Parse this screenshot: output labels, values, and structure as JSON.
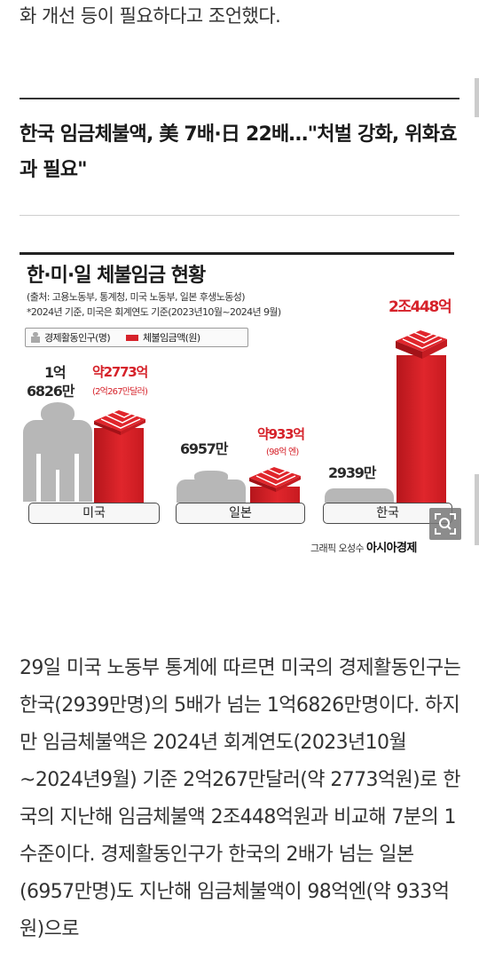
{
  "article": {
    "lead_tail": "화 개선 등이 필요하다고 조언했다.",
    "subheading": "한국 임금체불액, 美 7배·日 22배…\"처벌 강화, 위화효과 필요\"",
    "body_paragraph": "29일 미국 노동부 통계에 따르면 미국의 경제활동인구는 한국(2939만명)의 5배가 넘는 1억6826만명이다. 하지만 임금체불액은 2024년 회계연도(2023년10월~2024년9월) 기준 2억267만달러(약 2773억원)로 한국의 지난해 임금체불액 2조448억원과 비교해 7분의 1 수준이다. 경제활동인구가 한국의 2배가 넘는 일본(6957만명)도 지난해 임금체불액이 98억엔(약 933억원)으로"
  },
  "infographic": {
    "title": "한·미·일 체불임금 현황",
    "source_line1": "(출처: 고용노동부, 통계청, 미국 노동부, 일본 후생노동성)",
    "source_line2": "*2024년 기준, 미국은 회계연도 기준(2023년10월~2024년 9월)",
    "legend_population": "경제활동인구(명)",
    "legend_wages": "체불임금액(원)",
    "credit_prefix": "그래픽 오성수",
    "credit_outlet": "아시아경제",
    "zoom_icon": "magnify-expand-icon",
    "colors": {
      "accent_red": "#d6222a",
      "figure_gray": "#b7b7b7"
    }
  },
  "chart_data": {
    "type": "bar",
    "title": "한·미·일 체불임금 현황",
    "categories": [
      "미국",
      "일본",
      "한국"
    ],
    "series": [
      {
        "name": "경제활동인구(명)",
        "values": [
          168260000,
          69570000,
          29390000
        ],
        "labels": [
          [
            "1억",
            "6826만"
          ],
          [
            "6957만"
          ],
          [
            "2939만"
          ]
        ]
      },
      {
        "name": "체불임금액(원)",
        "values": [
          277300000000,
          93300000000,
          2044800000000
        ],
        "labels": [
          "약2773억",
          "약933억",
          "2조448억"
        ],
        "sublabels": [
          "(2억267만달러)",
          "(98억 엔)",
          ""
        ]
      }
    ]
  }
}
